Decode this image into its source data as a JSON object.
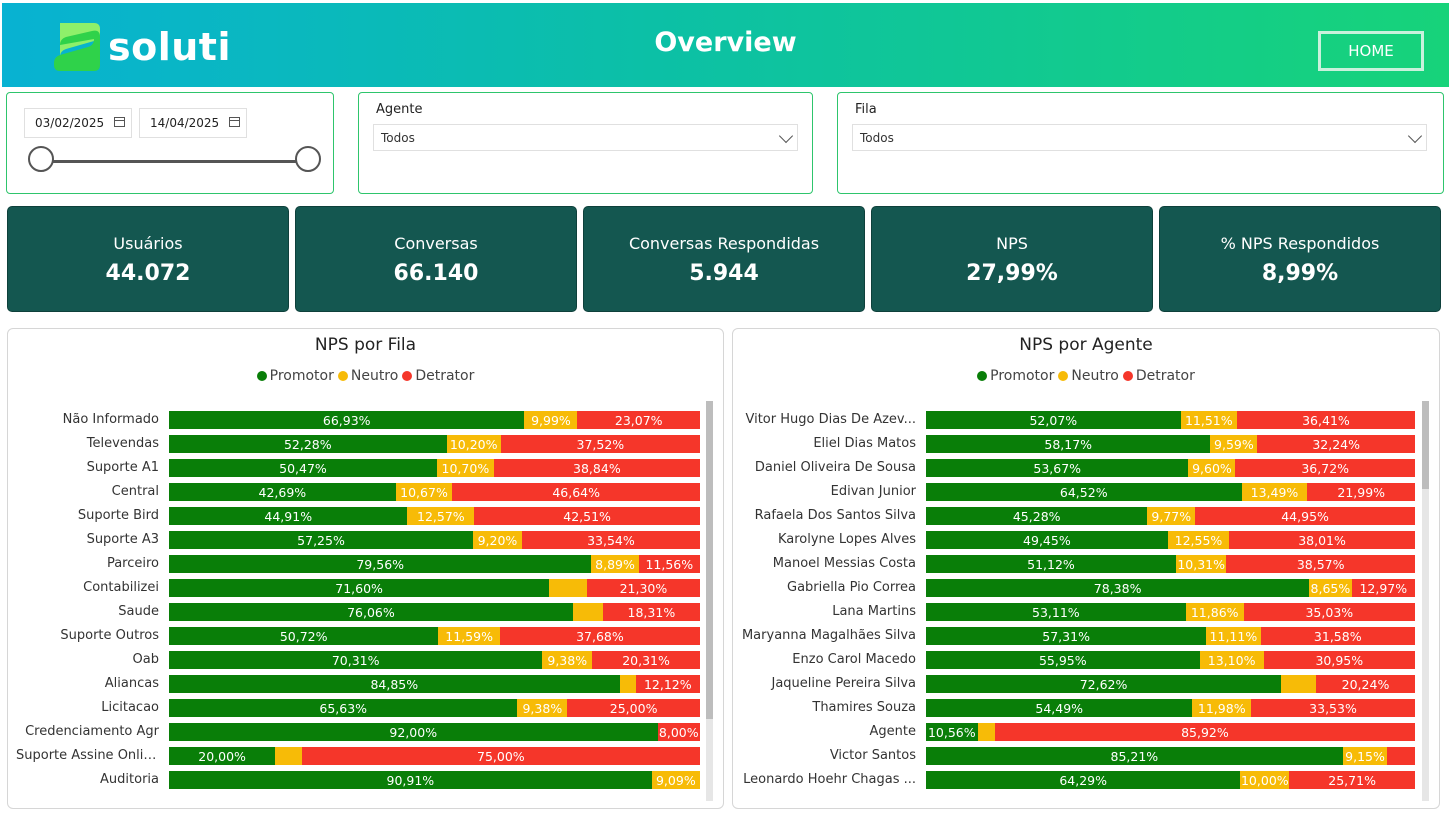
{
  "header": {
    "logo_text": "soluti",
    "title": "Overview",
    "home_label": "HOME"
  },
  "filters": {
    "date_start": "03/02/2025",
    "date_end": "14/04/2025",
    "agent": {
      "label": "Agente",
      "value": "Todos"
    },
    "queue": {
      "label": "Fila",
      "value": "Todos"
    }
  },
  "kpis": [
    {
      "label": "Usuários",
      "value": "44.072"
    },
    {
      "label": "Conversas",
      "value": "66.140"
    },
    {
      "label": "Conversas Respondidas",
      "value": "5.944"
    },
    {
      "label": "NPS",
      "value": "27,99%"
    },
    {
      "label": "% NPS Respondidos",
      "value": "8,99%"
    }
  ],
  "colors": {
    "promotor": "#097e08",
    "neutro": "#f7bb07",
    "detrator": "#f5362a",
    "kpi_bg": "#145750"
  },
  "legend": {
    "promotor": "Promotor",
    "neutro": "Neutro",
    "detrator": "Detrator"
  },
  "chart_data": [
    {
      "type": "bar",
      "title": "NPS por Fila",
      "legend": "top-center",
      "series": [
        {
          "name": "Promotor",
          "values": [
            66.93,
            52.28,
            50.47,
            42.69,
            44.91,
            57.25,
            79.56,
            71.6,
            76.06,
            50.72,
            70.31,
            84.85,
            65.63,
            92.0,
            20.0,
            90.91
          ]
        },
        {
          "name": "Neutro",
          "values": [
            9.99,
            10.2,
            10.7,
            10.67,
            12.57,
            9.2,
            8.89,
            7.1,
            5.63,
            11.59,
            9.38,
            3.03,
            9.38,
            0,
            5.0,
            9.09
          ]
        },
        {
          "name": "Detrator",
          "values": [
            23.07,
            37.52,
            38.84,
            46.64,
            42.51,
            33.54,
            11.56,
            21.3,
            18.31,
            37.68,
            20.31,
            12.12,
            25.0,
            8.0,
            75.0,
            0
          ]
        }
      ],
      "labels": [
        [
          "66,93%",
          "9,99%",
          "23,07%"
        ],
        [
          "52,28%",
          "10,20%",
          "37,52%"
        ],
        [
          "50,47%",
          "10,70%",
          "38,84%"
        ],
        [
          "42,69%",
          "10,67%",
          "46,64%"
        ],
        [
          "44,91%",
          "12,57%",
          "42,51%"
        ],
        [
          "57,25%",
          "9,20%",
          "33,54%"
        ],
        [
          "79,56%",
          "8,89%",
          "11,56%"
        ],
        [
          "71,60%",
          "",
          "21,30%"
        ],
        [
          "76,06%",
          "",
          "18,31%"
        ],
        [
          "50,72%",
          "11,59%",
          "37,68%"
        ],
        [
          "70,31%",
          "9,38%",
          "20,31%"
        ],
        [
          "84,85%",
          "",
          "12,12%"
        ],
        [
          "65,63%",
          "9,38%",
          "25,00%"
        ],
        [
          "92,00%",
          "",
          "8,00%"
        ],
        [
          "20,00%",
          "",
          "75,00%"
        ],
        [
          "90,91%",
          "9,09%",
          ""
        ]
      ],
      "categories": [
        "Não Informado",
        "Televendas",
        "Suporte A1",
        "Central",
        "Suporte Bird",
        "Suporte A3",
        "Parceiro",
        "Contabilizei",
        "Saude",
        "Suporte Outros",
        "Oab",
        "Aliancas",
        "Licitacao",
        "Credenciamento Agr",
        "Suporte Assine Online",
        "Auditoria"
      ]
    },
    {
      "type": "bar",
      "title": "NPS por Agente",
      "legend": "top-center",
      "series": [
        {
          "name": "Promotor",
          "values": [
            52.07,
            58.17,
            53.67,
            64.52,
            45.28,
            49.45,
            51.12,
            78.38,
            53.11,
            57.31,
            55.95,
            72.62,
            54.49,
            10.56,
            85.21,
            64.29
          ]
        },
        {
          "name": "Neutro",
          "values": [
            11.51,
            9.59,
            9.6,
            13.49,
            9.77,
            12.55,
            10.31,
            8.65,
            11.86,
            11.11,
            13.1,
            7.14,
            11.98,
            3.52,
            9.15,
            10.0
          ]
        },
        {
          "name": "Detrator",
          "values": [
            36.41,
            32.24,
            36.72,
            21.99,
            44.95,
            38.01,
            38.57,
            12.97,
            35.03,
            31.58,
            30.95,
            20.24,
            33.53,
            85.92,
            5.64,
            25.71
          ]
        }
      ],
      "labels": [
        [
          "52,07%",
          "11,51%",
          "36,41%"
        ],
        [
          "58,17%",
          "9,59%",
          "32,24%"
        ],
        [
          "53,67%",
          "9,60%",
          "36,72%"
        ],
        [
          "64,52%",
          "13,49%",
          "21,99%"
        ],
        [
          "45,28%",
          "9,77%",
          "44,95%"
        ],
        [
          "49,45%",
          "12,55%",
          "38,01%"
        ],
        [
          "51,12%",
          "10,31%",
          "38,57%"
        ],
        [
          "78,38%",
          "8,65%",
          "12,97%"
        ],
        [
          "53,11%",
          "11,86%",
          "35,03%"
        ],
        [
          "57,31%",
          "11,11%",
          "31,58%"
        ],
        [
          "55,95%",
          "13,10%",
          "30,95%"
        ],
        [
          "72,62%",
          "",
          "20,24%"
        ],
        [
          "54,49%",
          "11,98%",
          "33,53%"
        ],
        [
          "10,56%",
          "",
          "85,92%"
        ],
        [
          "85,21%",
          "9,15%",
          ""
        ],
        [
          "64,29%",
          "10,00%",
          "25,71%"
        ]
      ],
      "categories": [
        "Vitor Hugo Dias De Azev...",
        "Eliel Dias Matos",
        "Daniel Oliveira De Sousa",
        "Edivan Junior",
        "Rafaela Dos Santos Silva",
        "Karolyne Lopes Alves",
        "Manoel Messias Costa",
        "Gabriella Pio Correa",
        "Lana Martins",
        "Maryanna Magalhães Silva",
        "Enzo Carol Macedo",
        "Jaqueline Pereira Silva",
        "Thamires Souza",
        "Agente",
        "Victor Santos",
        "Leonardo Hoehr Chagas ..."
      ]
    }
  ]
}
